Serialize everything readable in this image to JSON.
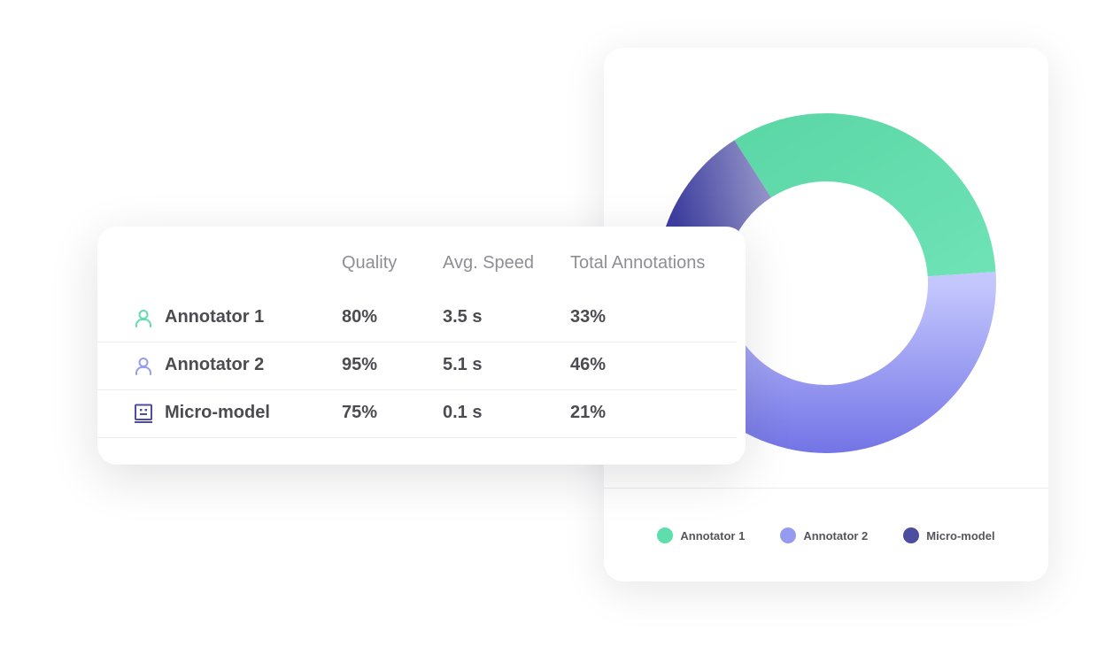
{
  "colors": {
    "annotator_1": "#5fddac",
    "annotator_2": "#959cf0",
    "micro_model": "#4c4d9e"
  },
  "table": {
    "headers": [
      "Quality",
      "Avg. Speed",
      "Total Annotations"
    ],
    "rows": [
      {
        "icon": "user-icon",
        "name": "Annotator 1",
        "quality": "80%",
        "speed": "3.5 s",
        "total": "33%"
      },
      {
        "icon": "user-icon",
        "name": "Annotator 2",
        "quality": "95%",
        "speed": "5.1 s",
        "total": "46%"
      },
      {
        "icon": "robot-icon",
        "name": "Micro-model",
        "quality": "75%",
        "speed": "0.1 s",
        "total": "21%"
      }
    ]
  },
  "legend": {
    "items": [
      "Annotator 1",
      "Annotator 2",
      "Micro-model"
    ]
  },
  "chart_data": {
    "type": "pie",
    "donut": true,
    "categories": [
      "Annotator 1",
      "Annotator 2",
      "Micro-model"
    ],
    "values": [
      33,
      46,
      21
    ],
    "colors": [
      "#5fddac",
      "#959cf0",
      "#4c4d9e"
    ],
    "legend_position": "bottom"
  }
}
